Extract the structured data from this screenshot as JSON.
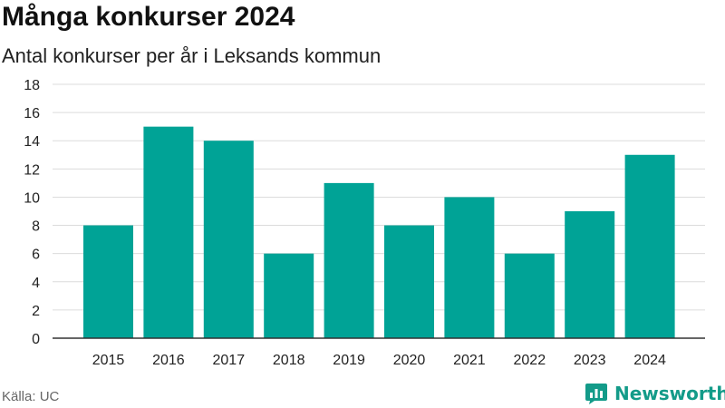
{
  "header": {
    "title": "Många konkurser 2024",
    "subtitle": "Antal konkurser per år i Leksands kommun"
  },
  "footer": {
    "source": "Källa: UC",
    "brand": "Newsworthy",
    "brand_icon": "newsworthy-logo-icon"
  },
  "colors": {
    "bar": "#00a396",
    "grid": "#dcdcdc",
    "axis": "#333333",
    "brand": "#139b89"
  },
  "chart_data": {
    "type": "bar",
    "title": "Många konkurser 2024",
    "subtitle": "Antal konkurser per år i Leksands kommun",
    "categories": [
      "2015",
      "2016",
      "2017",
      "2018",
      "2019",
      "2020",
      "2021",
      "2022",
      "2023",
      "2024"
    ],
    "values": [
      8,
      15,
      14,
      6,
      11,
      8,
      10,
      6,
      9,
      13
    ],
    "xlabel": "",
    "ylabel": "",
    "ylim": [
      0,
      18
    ],
    "yticks": [
      0,
      2,
      4,
      6,
      8,
      10,
      12,
      14,
      16,
      18
    ],
    "grid": true,
    "legend": "none"
  }
}
